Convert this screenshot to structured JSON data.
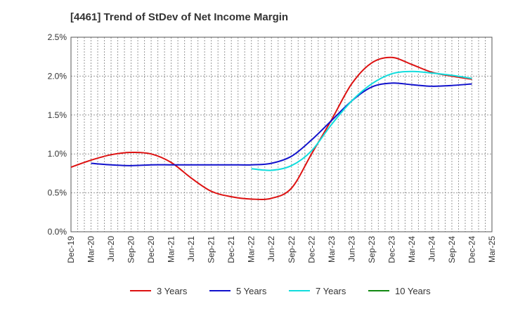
{
  "chart_data": {
    "type": "line",
    "title": "[4461]  Trend of StDev of Net Income Margin",
    "xlabel": "",
    "ylabel": "",
    "x_tick_labels": [
      "Dec-19",
      "Mar-20",
      "Jun-20",
      "Sep-20",
      "Dec-20",
      "Mar-21",
      "Jun-21",
      "Sep-21",
      "Dec-21",
      "Mar-22",
      "Jun-22",
      "Sep-22",
      "Dec-22",
      "Mar-23",
      "Jun-23",
      "Sep-23",
      "Dec-23",
      "Mar-24",
      "Jun-24",
      "Sep-24",
      "Dec-24",
      "Mar-25"
    ],
    "y_tick_labels": [
      "0.0%",
      "0.5%",
      "1.0%",
      "1.5%",
      "2.0%",
      "2.5%"
    ],
    "ylim": [
      0,
      2.5
    ],
    "y_unit": "%",
    "grid": true,
    "legend_position": "bottom",
    "series": [
      {
        "name": "3 Years",
        "color": "#dd1111",
        "x": [
          "Dec-19",
          "Mar-20",
          "Jun-20",
          "Sep-20",
          "Dec-20",
          "Mar-21",
          "Jun-21",
          "Sep-21",
          "Dec-21",
          "Mar-22",
          "Jun-22",
          "Sep-22",
          "Dec-22",
          "Mar-23",
          "Jun-23",
          "Sep-23",
          "Dec-23",
          "Mar-24",
          "Jun-24",
          "Sep-24",
          "Dec-24"
        ],
        "values": [
          0.83,
          0.92,
          0.99,
          1.02,
          1.0,
          0.89,
          0.69,
          0.52,
          0.45,
          0.42,
          0.43,
          0.56,
          1.0,
          1.44,
          1.9,
          2.17,
          2.24,
          2.15,
          2.05,
          2.0,
          1.96
        ]
      },
      {
        "name": "5 Years",
        "color": "#1111cc",
        "x": [
          "Mar-20",
          "Jun-20",
          "Sep-20",
          "Dec-20",
          "Mar-21",
          "Jun-21",
          "Sep-21",
          "Dec-21",
          "Mar-22",
          "Jun-22",
          "Sep-22",
          "Dec-22",
          "Mar-23",
          "Jun-23",
          "Sep-23",
          "Dec-23",
          "Mar-24",
          "Jun-24",
          "Sep-24",
          "Dec-24"
        ],
        "values": [
          0.88,
          0.86,
          0.85,
          0.86,
          0.86,
          0.86,
          0.86,
          0.86,
          0.86,
          0.88,
          0.97,
          1.18,
          1.43,
          1.68,
          1.86,
          1.91,
          1.89,
          1.87,
          1.88,
          1.9
        ]
      },
      {
        "name": "7 Years",
        "color": "#11dddd",
        "x": [
          "Mar-22",
          "Jun-22",
          "Sep-22",
          "Dec-22",
          "Mar-23",
          "Jun-23",
          "Sep-23",
          "Dec-23",
          "Mar-24",
          "Jun-24",
          "Sep-24",
          "Dec-24"
        ],
        "values": [
          0.81,
          0.79,
          0.85,
          1.04,
          1.38,
          1.68,
          1.9,
          2.03,
          2.06,
          2.04,
          2.01,
          1.97
        ]
      },
      {
        "name": "10 Years",
        "color": "#118811",
        "x": [],
        "values": []
      }
    ]
  }
}
